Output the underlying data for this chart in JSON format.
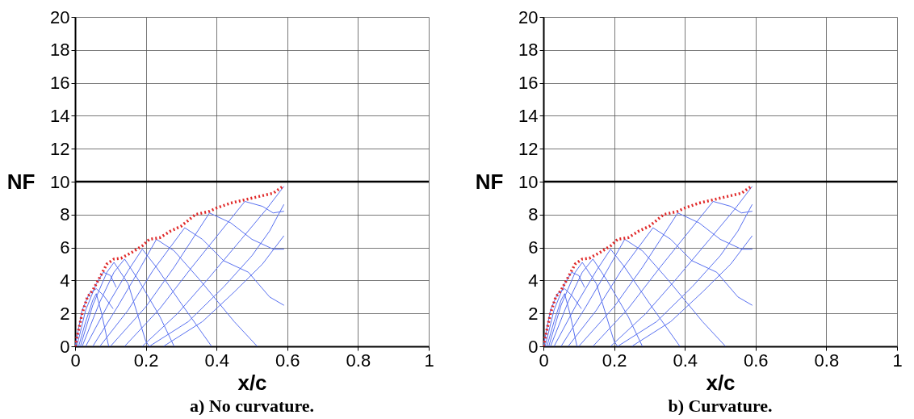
{
  "chart_data": [
    {
      "type": "line",
      "title": "a) No curvature.",
      "xlabel": "x/c",
      "ylabel": "NF",
      "xlim": [
        0,
        1
      ],
      "ylim": [
        0,
        20
      ],
      "xticks": [
        0,
        0.2,
        0.4,
        0.6,
        0.8,
        1
      ],
      "yticks": [
        0,
        2,
        4,
        6,
        8,
        10,
        12,
        14,
        16,
        18,
        20
      ],
      "grid": true,
      "ref_lines": [
        {
          "axis": "y",
          "value": 10,
          "color": "#000000"
        }
      ],
      "series": [
        {
          "color": "#5870f0",
          "x": [
            0,
            0.02,
            0.04,
            0.06,
            0.08,
            0.107
          ],
          "values": [
            0,
            2.2,
            3.2,
            3.5,
            3.1,
            2.3
          ]
        },
        {
          "color": "#5870f0",
          "x": [
            0.005,
            0.03,
            0.06,
            0.08,
            0.1,
            0.116
          ],
          "values": [
            0,
            2.2,
            3.8,
            4.5,
            4.3,
            3.6
          ]
        },
        {
          "color": "#5870f0",
          "x": [
            0.01,
            0.03,
            0.05,
            0.06,
            0.075,
            0.095
          ],
          "values": [
            0,
            1.5,
            2.8,
            3.2,
            2,
            0
          ]
        },
        {
          "color": "#5870f0",
          "x": [
            0.015,
            0.05,
            0.09,
            0.11,
            0.15,
            0.2,
            0.21
          ],
          "values": [
            0,
            2.5,
            4.5,
            5.1,
            3.8,
            0.3,
            0
          ]
        },
        {
          "color": "#5870f0",
          "x": [
            0.02,
            0.07,
            0.11,
            0.14,
            0.18,
            0.24,
            0.28
          ],
          "values": [
            0,
            2.7,
            4.5,
            5.3,
            4,
            1.8,
            0
          ]
        },
        {
          "color": "#5870f0",
          "x": [
            0.03,
            0.1,
            0.15,
            0.19,
            0.23,
            0.3,
            0.386
          ],
          "values": [
            0,
            2.8,
            4.6,
            5.9,
            4.8,
            2.6,
            0
          ]
        },
        {
          "color": "#5870f0",
          "x": [
            0.05,
            0.12,
            0.18,
            0.23,
            0.28,
            0.35,
            0.45,
            0.515
          ],
          "values": [
            0,
            2.4,
            4.6,
            6.5,
            5.8,
            4.1,
            1.5,
            0
          ]
        },
        {
          "color": "#5870f0",
          "x": [
            0.07,
            0.15,
            0.22,
            0.31,
            0.36,
            0.42,
            0.49,
            0.55,
            0.59
          ],
          "values": [
            0,
            2.2,
            4.6,
            7.2,
            6.5,
            5.2,
            4.5,
            3,
            2.5
          ]
        },
        {
          "color": "#5870f0",
          "x": [
            0.1,
            0.2,
            0.28,
            0.38,
            0.44,
            0.5,
            0.56,
            0.59
          ],
          "values": [
            0,
            2.4,
            4.8,
            8.1,
            7.5,
            6.5,
            5.9,
            5.9
          ]
        },
        {
          "color": "#5870f0",
          "x": [
            0.14,
            0.24,
            0.33,
            0.48,
            0.53,
            0.56,
            0.59
          ],
          "values": [
            0,
            2.3,
            4.8,
            8.8,
            8.5,
            8.1,
            8.2
          ]
        },
        {
          "color": "#5870f0",
          "x": [
            0.19,
            0.29,
            0.38,
            0.47,
            0.54,
            0.59
          ],
          "values": [
            0,
            2,
            4.2,
            6.5,
            8.3,
            9.7
          ]
        },
        {
          "color": "#5870f0",
          "x": [
            0.21,
            0.32,
            0.42,
            0.5,
            0.55,
            0.59
          ],
          "values": [
            0,
            1.5,
            3.6,
            5.5,
            7,
            8.6
          ]
        },
        {
          "color": "#5870f0",
          "x": [
            0.25,
            0.36,
            0.45,
            0.53,
            0.59
          ],
          "values": [
            0,
            1.5,
            3.3,
            5,
            6.7
          ]
        },
        {
          "color": "#e02828",
          "line_style": "dotted",
          "x": [
            0,
            0.01,
            0.02,
            0.035,
            0.05,
            0.07,
            0.09,
            0.11,
            0.13,
            0.16,
            0.19,
            0.21,
            0.24,
            0.27,
            0.3,
            0.34,
            0.38,
            0.4,
            0.44,
            0.48,
            0.52,
            0.56,
            0.59
          ],
          "values": [
            0,
            1,
            2,
            3,
            3.4,
            4.2,
            5,
            5.3,
            5.35,
            5.7,
            6.1,
            6.5,
            6.6,
            7,
            7.3,
            8,
            8.2,
            8.4,
            8.7,
            8.9,
            9.1,
            9.3,
            9.75
          ]
        }
      ]
    },
    {
      "type": "line",
      "title": "b) Curvature.",
      "xlabel": "x/c",
      "ylabel": "NF",
      "xlim": [
        0,
        1
      ],
      "ylim": [
        0,
        20
      ],
      "xticks": [
        0,
        0.2,
        0.4,
        0.6,
        0.8,
        1
      ],
      "yticks": [
        0,
        2,
        4,
        6,
        8,
        10,
        12,
        14,
        16,
        18,
        20
      ],
      "grid": true,
      "ref_lines": [
        {
          "axis": "y",
          "value": 10,
          "color": "#000000"
        }
      ],
      "series": [
        {
          "color": "#5870f0",
          "x": [
            0,
            0.02,
            0.04,
            0.06,
            0.08,
            0.107
          ],
          "values": [
            0,
            2.2,
            3.2,
            3.5,
            3.1,
            2.3
          ]
        },
        {
          "color": "#5870f0",
          "x": [
            0.005,
            0.03,
            0.06,
            0.08,
            0.1,
            0.116
          ],
          "values": [
            0,
            2.2,
            3.8,
            4.5,
            4.3,
            3.6
          ]
        },
        {
          "color": "#5870f0",
          "x": [
            0.01,
            0.03,
            0.05,
            0.06,
            0.075,
            0.095
          ],
          "values": [
            0,
            1.5,
            2.8,
            3.2,
            2,
            0
          ]
        },
        {
          "color": "#5870f0",
          "x": [
            0.015,
            0.05,
            0.09,
            0.11,
            0.15,
            0.2,
            0.21
          ],
          "values": [
            0,
            2.5,
            4.5,
            5.1,
            3.8,
            0.3,
            0
          ]
        },
        {
          "color": "#5870f0",
          "x": [
            0.02,
            0.07,
            0.11,
            0.14,
            0.18,
            0.24,
            0.28
          ],
          "values": [
            0,
            2.7,
            4.5,
            5.3,
            4,
            1.8,
            0
          ]
        },
        {
          "color": "#5870f0",
          "x": [
            0.03,
            0.1,
            0.15,
            0.19,
            0.23,
            0.3,
            0.386
          ],
          "values": [
            0,
            2.8,
            4.6,
            5.9,
            4.8,
            2.6,
            0
          ]
        },
        {
          "color": "#5870f0",
          "x": [
            0.05,
            0.12,
            0.18,
            0.23,
            0.28,
            0.35,
            0.45,
            0.515
          ],
          "values": [
            0,
            2.4,
            4.6,
            6.5,
            5.8,
            4.1,
            1.5,
            0
          ]
        },
        {
          "color": "#5870f0",
          "x": [
            0.07,
            0.15,
            0.22,
            0.31,
            0.36,
            0.42,
            0.49,
            0.55,
            0.59
          ],
          "values": [
            0,
            2.2,
            4.6,
            7.2,
            6.5,
            5.2,
            4.5,
            3,
            2.5
          ]
        },
        {
          "color": "#5870f0",
          "x": [
            0.1,
            0.2,
            0.28,
            0.38,
            0.44,
            0.5,
            0.56,
            0.59
          ],
          "values": [
            0,
            2.4,
            4.8,
            8.1,
            7.5,
            6.5,
            5.9,
            5.9
          ]
        },
        {
          "color": "#5870f0",
          "x": [
            0.14,
            0.24,
            0.33,
            0.48,
            0.53,
            0.56,
            0.59
          ],
          "values": [
            0,
            2.3,
            4.8,
            8.8,
            8.5,
            8.1,
            8.2
          ]
        },
        {
          "color": "#5870f0",
          "x": [
            0.19,
            0.29,
            0.38,
            0.47,
            0.54,
            0.59
          ],
          "values": [
            0,
            2,
            4.2,
            6.5,
            8.3,
            9.7
          ]
        },
        {
          "color": "#5870f0",
          "x": [
            0.21,
            0.32,
            0.42,
            0.5,
            0.55,
            0.59
          ],
          "values": [
            0,
            1.5,
            3.6,
            5.5,
            7,
            8.6
          ]
        },
        {
          "color": "#5870f0",
          "x": [
            0.25,
            0.36,
            0.45,
            0.53,
            0.59
          ],
          "values": [
            0,
            1.5,
            3.3,
            5,
            6.7
          ]
        },
        {
          "color": "#e02828",
          "line_style": "dotted",
          "x": [
            0,
            0.01,
            0.02,
            0.035,
            0.05,
            0.07,
            0.09,
            0.11,
            0.13,
            0.16,
            0.19,
            0.21,
            0.24,
            0.27,
            0.3,
            0.34,
            0.38,
            0.4,
            0.44,
            0.48,
            0.52,
            0.56,
            0.59
          ],
          "values": [
            0,
            1,
            2,
            3,
            3.4,
            4.2,
            5,
            5.3,
            5.35,
            5.7,
            6.1,
            6.5,
            6.6,
            7,
            7.3,
            8,
            8.2,
            8.4,
            8.7,
            8.9,
            9.1,
            9.3,
            9.75
          ]
        }
      ]
    }
  ]
}
